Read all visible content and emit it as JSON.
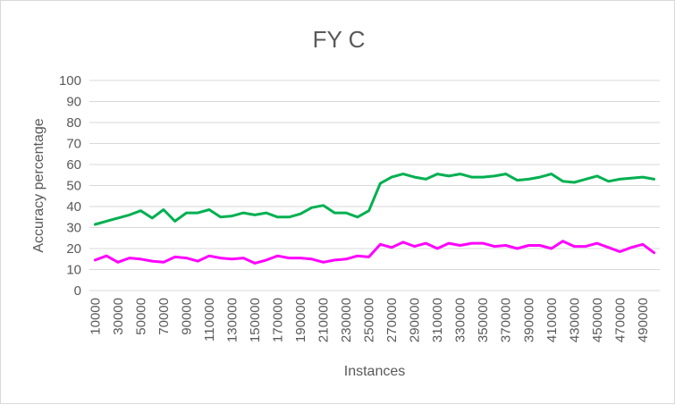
{
  "chart_data": {
    "type": "line",
    "title": "FY C",
    "xlabel": "Instances",
    "ylabel": "Accuracy percentage",
    "ylim": [
      0,
      100
    ],
    "yticks": [
      0,
      10,
      20,
      30,
      40,
      50,
      60,
      70,
      80,
      90,
      100
    ],
    "x": [
      10000,
      20000,
      30000,
      40000,
      50000,
      60000,
      70000,
      80000,
      90000,
      100000,
      110000,
      120000,
      130000,
      140000,
      150000,
      160000,
      170000,
      180000,
      190000,
      200000,
      210000,
      220000,
      230000,
      240000,
      250000,
      260000,
      270000,
      280000,
      290000,
      300000,
      310000,
      320000,
      330000,
      340000,
      350000,
      360000,
      370000,
      380000,
      390000,
      400000,
      410000,
      420000,
      430000,
      440000,
      450000,
      460000,
      470000,
      480000,
      490000,
      500000
    ],
    "xtick_labels": [
      "10000",
      "30000",
      "50000",
      "70000",
      "90000",
      "110000",
      "130000",
      "150000",
      "170000",
      "190000",
      "210000",
      "230000",
      "250000",
      "270000",
      "290000",
      "310000",
      "330000",
      "350000",
      "370000",
      "390000",
      "410000",
      "430000",
      "450000",
      "470000",
      "490000"
    ],
    "series": [
      {
        "color": "#00b050",
        "values": [
          31.5,
          33,
          34.5,
          36,
          38,
          34.5,
          38.5,
          33,
          37,
          37,
          38.5,
          35,
          35.5,
          37,
          36,
          37,
          35,
          35,
          36.5,
          39.5,
          40.5,
          37,
          37,
          35,
          38,
          51,
          54,
          55.5,
          54,
          53,
          55.5,
          54.5,
          55.5,
          54,
          54,
          54.5,
          55.5,
          52.5,
          53,
          54,
          55.5,
          52,
          51.5,
          53,
          54.5,
          52,
          53,
          53.5,
          54,
          53
        ]
      },
      {
        "color": "#ff00ff",
        "values": [
          14.5,
          16.5,
          13.5,
          15.5,
          15,
          14,
          13.5,
          16,
          15.5,
          14,
          16.5,
          15.5,
          15,
          15.5,
          13,
          14.5,
          16.5,
          15.5,
          15.5,
          15,
          13.5,
          14.5,
          15,
          16.5,
          16,
          22,
          20.5,
          23,
          21,
          22.5,
          20,
          22.5,
          21.5,
          22.5,
          22.5,
          21,
          21.5,
          20,
          21.5,
          21.5,
          20,
          23.5,
          21,
          21,
          22.5,
          20.5,
          18.5,
          20.5,
          22,
          18
        ]
      }
    ],
    "grid": true,
    "legend": "none"
  }
}
